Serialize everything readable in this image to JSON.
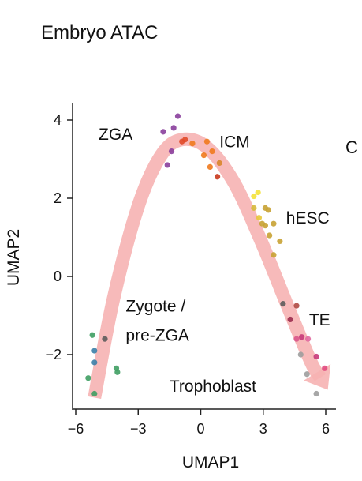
{
  "title": "Embryo ATAC",
  "edge_letter": "C",
  "chart_data": {
    "type": "scatter",
    "title": "Embryo ATAC",
    "xlabel": "UMAP1",
    "ylabel": "UMAP2",
    "xlim": [
      -6.2,
      6.3
    ],
    "ylim": [
      -3.4,
      4.4
    ],
    "xticks": [
      -6,
      -3,
      0,
      3,
      6
    ],
    "yticks": [
      -2,
      0,
      2,
      4
    ],
    "xtick_labels": [
      "−6",
      "−3",
      "0",
      "3",
      "6"
    ],
    "ytick_labels": [
      "−2",
      "0",
      "2",
      "4"
    ],
    "grid": false,
    "arrow_path": [
      [
        -5.1,
        -3.1
      ],
      [
        -4.2,
        -0.6
      ],
      [
        -3.0,
        1.8
      ],
      [
        -1.9,
        3.1
      ],
      [
        -0.9,
        3.5
      ],
      [
        0.3,
        3.3
      ],
      [
        1.6,
        2.4
      ],
      [
        2.9,
        0.9
      ],
      [
        4.2,
        -0.8
      ],
      [
        5.3,
        -2.2
      ],
      [
        6.1,
        -2.9
      ]
    ],
    "arrow_color": "#f6b3b3",
    "annotations": [
      {
        "text": "ZGA",
        "x": -4.9,
        "y": 3.5
      },
      {
        "text": "ICM",
        "x": 0.9,
        "y": 3.3
      },
      {
        "text": "hESC",
        "x": 4.1,
        "y": 1.35
      },
      {
        "text": "Zygote /",
        "x": -3.6,
        "y": -0.9
      },
      {
        "text": "pre-ZGA",
        "x": -3.6,
        "y": -1.65
      },
      {
        "text": "TE",
        "x": 5.2,
        "y": -1.25
      },
      {
        "text": "Trophoblast",
        "x": -1.5,
        "y": -2.95
      }
    ],
    "points": [
      {
        "x": -5.4,
        "y": -2.6,
        "color": "#3f9e63"
      },
      {
        "x": -5.2,
        "y": -1.5,
        "color": "#3f9e63"
      },
      {
        "x": -5.1,
        "y": -3.0,
        "color": "#3f9e63"
      },
      {
        "x": -5.1,
        "y": -1.9,
        "color": "#3b7fa8"
      },
      {
        "x": -5.1,
        "y": -2.2,
        "color": "#3b7fa8"
      },
      {
        "x": -4.6,
        "y": -1.6,
        "color": "#5c5c5c"
      },
      {
        "x": -4.05,
        "y": -2.35,
        "color": "#3f9e63"
      },
      {
        "x": -4.0,
        "y": -2.45,
        "color": "#3f9e63"
      },
      {
        "x": -1.8,
        "y": 3.7,
        "color": "#8a3f9c"
      },
      {
        "x": -1.6,
        "y": 2.85,
        "color": "#8a3f9c"
      },
      {
        "x": -1.4,
        "y": 3.2,
        "color": "#8a3f9c"
      },
      {
        "x": -1.3,
        "y": 3.8,
        "color": "#8a3f9c"
      },
      {
        "x": -1.1,
        "y": 4.1,
        "color": "#8a3f9c"
      },
      {
        "x": -0.9,
        "y": 3.45,
        "color": "#e04b2a"
      },
      {
        "x": -0.75,
        "y": 3.5,
        "color": "#e04b2a"
      },
      {
        "x": -0.4,
        "y": 3.4,
        "color": "#f07a1e"
      },
      {
        "x": 0.15,
        "y": 3.1,
        "color": "#f07a1e"
      },
      {
        "x": 0.3,
        "y": 3.45,
        "color": "#f07a1e"
      },
      {
        "x": 0.45,
        "y": 2.8,
        "color": "#f07a1e"
      },
      {
        "x": 0.55,
        "y": 3.2,
        "color": "#f07a1e"
      },
      {
        "x": 0.9,
        "y": 2.9,
        "color": "#d9862b"
      },
      {
        "x": 0.8,
        "y": 2.55,
        "color": "#c9391d"
      },
      {
        "x": 2.55,
        "y": 2.05,
        "color": "#f4e23a"
      },
      {
        "x": 2.75,
        "y": 2.15,
        "color": "#f4e23a"
      },
      {
        "x": 2.55,
        "y": 1.75,
        "color": "#d6b93b"
      },
      {
        "x": 2.8,
        "y": 1.5,
        "color": "#e8c83a"
      },
      {
        "x": 2.95,
        "y": 1.35,
        "color": "#c8a233"
      },
      {
        "x": 3.1,
        "y": 1.75,
        "color": "#c8a233"
      },
      {
        "x": 3.25,
        "y": 1.7,
        "color": "#c8a233"
      },
      {
        "x": 3.1,
        "y": 1.3,
        "color": "#c8a233"
      },
      {
        "x": 3.3,
        "y": 1.05,
        "color": "#c8a233"
      },
      {
        "x": 3.5,
        "y": 1.35,
        "color": "#c8a233"
      },
      {
        "x": 3.5,
        "y": 0.55,
        "color": "#c8a233"
      },
      {
        "x": 3.8,
        "y": 0.9,
        "color": "#c8a233"
      },
      {
        "x": 3.95,
        "y": -0.7,
        "color": "#5c5c5c"
      },
      {
        "x": 4.3,
        "y": -1.1,
        "color": "#9b2d4f"
      },
      {
        "x": 4.6,
        "y": -0.75,
        "color": "#b04a44"
      },
      {
        "x": 4.6,
        "y": -1.6,
        "color": "#d9578a"
      },
      {
        "x": 4.85,
        "y": -1.55,
        "color": "#c63a7a"
      },
      {
        "x": 4.8,
        "y": -2.0,
        "color": "#9d9d9d"
      },
      {
        "x": 5.15,
        "y": -1.6,
        "color": "#e16aa0"
      },
      {
        "x": 5.1,
        "y": -2.5,
        "color": "#9d9d9d"
      },
      {
        "x": 5.55,
        "y": -2.05,
        "color": "#c63a7a"
      },
      {
        "x": 5.55,
        "y": -3.0,
        "color": "#9d9d9d"
      },
      {
        "x": 5.95,
        "y": -2.35,
        "color": "#e14a7f"
      }
    ]
  }
}
